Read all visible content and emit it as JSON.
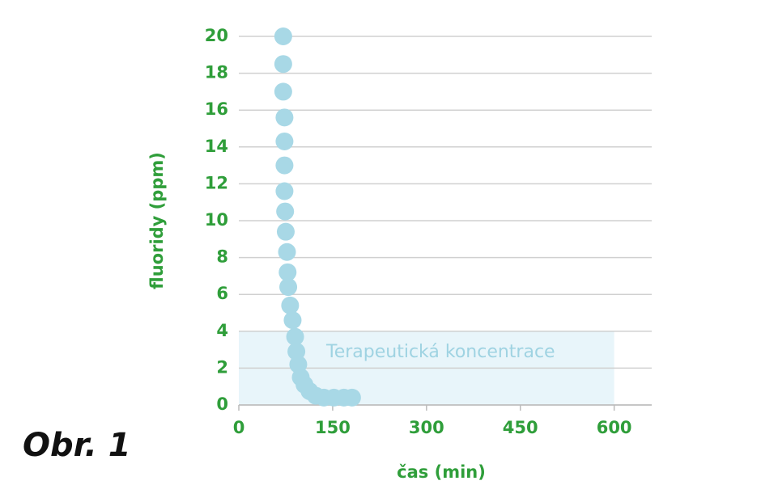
{
  "chart_data": {
    "type": "scatter",
    "figure_label": "Obr. 1",
    "x_label": "čas (min)",
    "y_label": "fluoridy (ppm)",
    "x": [
      71,
      71,
      71,
      73,
      73,
      73,
      73,
      74,
      75,
      77,
      78,
      79,
      82,
      86,
      90,
      92,
      95,
      99,
      105,
      113,
      123,
      136,
      152,
      168,
      181
    ],
    "values": [
      20,
      18.5,
      17,
      15.6,
      14.3,
      13,
      11.6,
      10.5,
      9.4,
      8.3,
      7.2,
      6.4,
      5.4,
      4.6,
      3.7,
      2.9,
      2.2,
      1.5,
      1.1,
      0.75,
      0.5,
      0.4,
      0.4,
      0.4,
      0.4
    ],
    "color": "#a8d8e6",
    "band": {
      "label": "Terapeutická koncentrace",
      "x": [
        0,
        600
      ],
      "y": [
        0,
        4
      ],
      "color": "#e8f5fa"
    },
    "xlim": [
      0,
      660
    ],
    "ylim": [
      0,
      20
    ],
    "xticks": [
      0,
      150,
      300,
      450,
      600
    ],
    "yticks": [
      0,
      2,
      4,
      6,
      8,
      10,
      12,
      14,
      16,
      18,
      20
    ],
    "grid": true
  }
}
